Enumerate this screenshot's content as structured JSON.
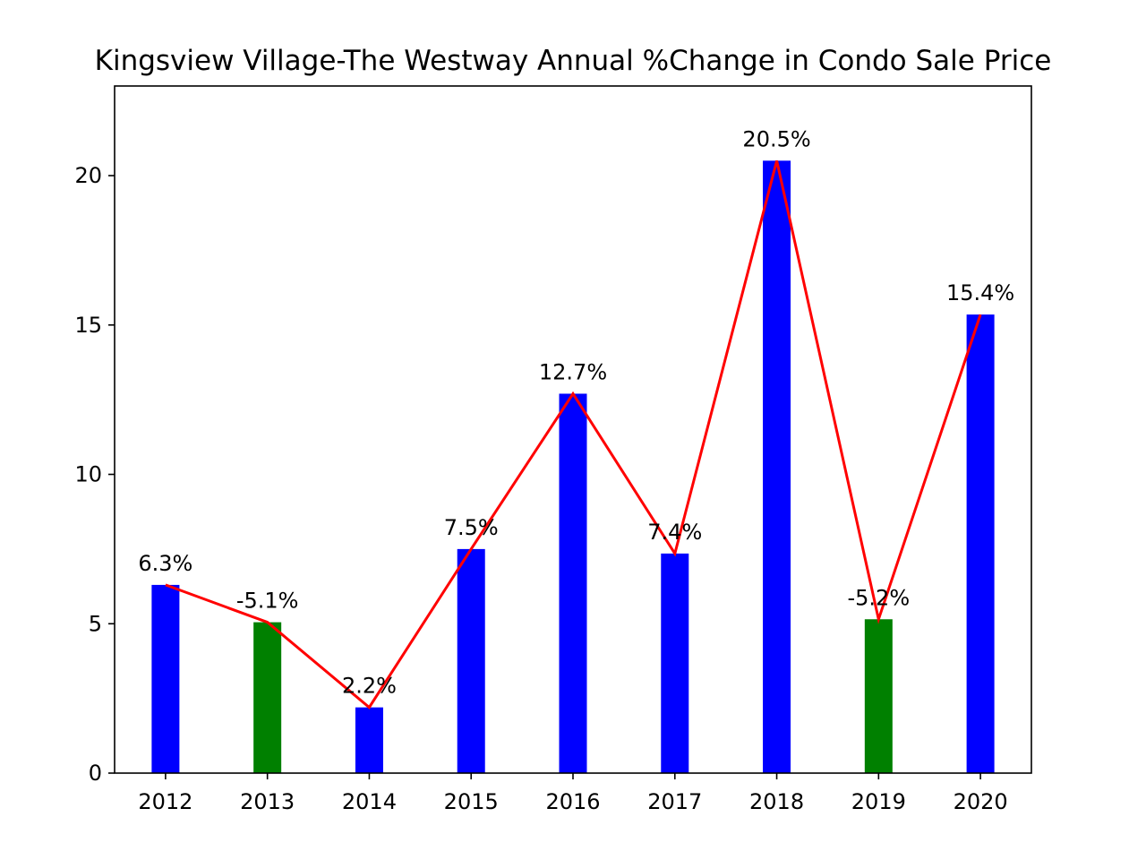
{
  "chart_data": {
    "type": "bar",
    "title": "Kingsview Village-The Westway Annual %Change in Condo Sale Price",
    "xlabel": "",
    "ylabel": "",
    "categories": [
      "2012",
      "2013",
      "2014",
      "2015",
      "2016",
      "2017",
      "2018",
      "2019",
      "2020"
    ],
    "values": [
      6.3,
      5.05,
      2.2,
      7.5,
      12.7,
      7.35,
      20.5,
      5.15,
      15.35
    ],
    "data_labels": [
      "6.3%",
      "-5.1%",
      "2.2%",
      "7.5%",
      "12.7%",
      "7.4%",
      "20.5%",
      "-5.2%",
      "15.4%"
    ],
    "bar_colors": [
      "#0000ff",
      "#008000",
      "#0000ff",
      "#0000ff",
      "#0000ff",
      "#0000ff",
      "#0000ff",
      "#008000",
      "#0000ff"
    ],
    "line_color": "#ff0000",
    "ylim": [
      0,
      23
    ],
    "yticks": [
      0,
      5,
      10,
      15,
      20
    ],
    "grid": false,
    "legend": "none"
  }
}
